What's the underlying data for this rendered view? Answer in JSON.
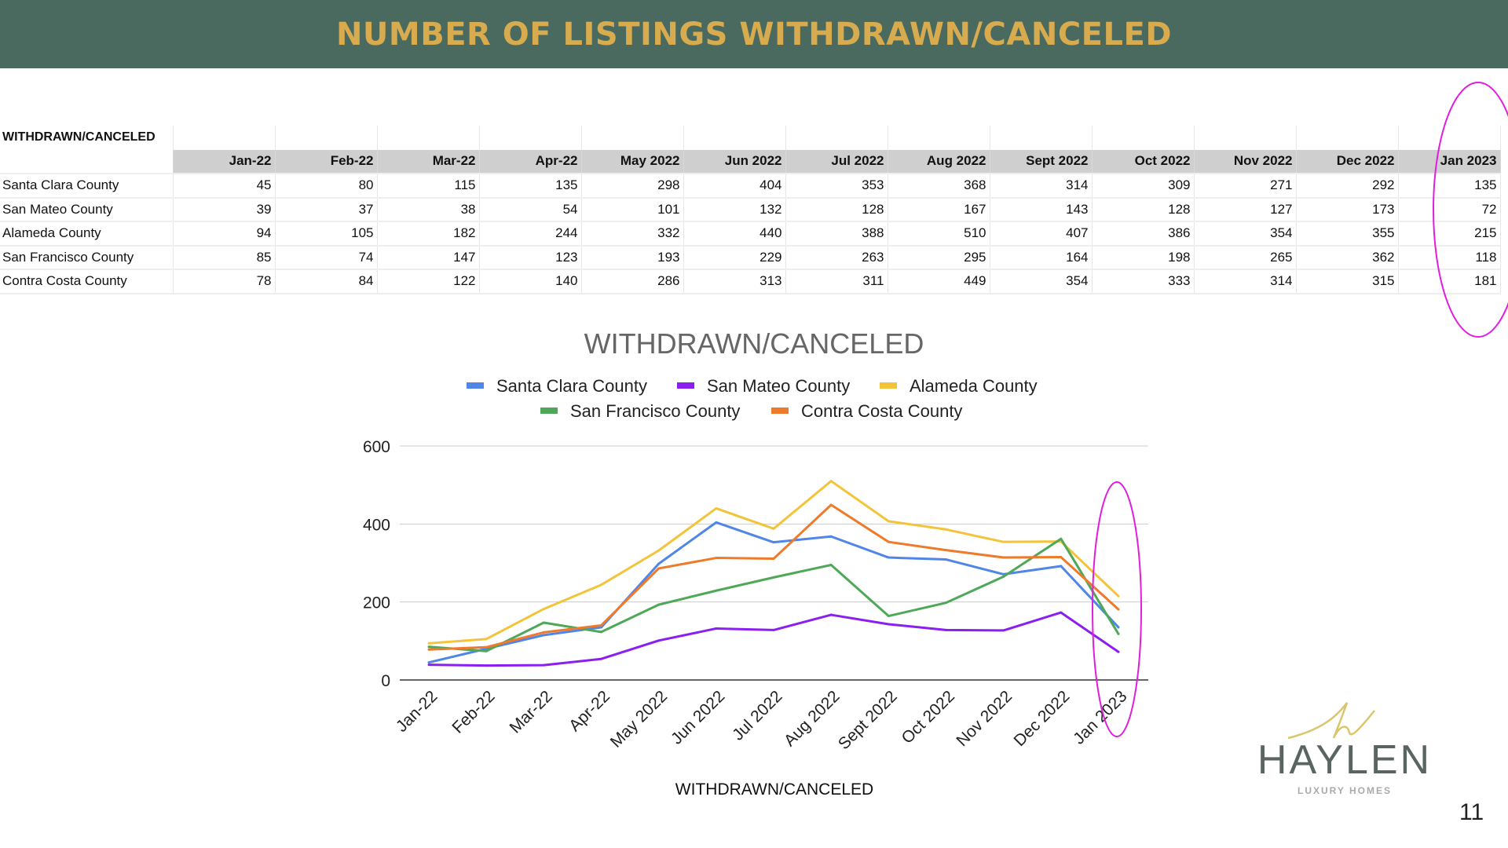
{
  "header": {
    "title": "NUMBER OF LISTINGS WITHDRAWN/CANCELED"
  },
  "table": {
    "title": "WITHDRAWN/CANCELED",
    "columns": [
      "Jan-22",
      "Feb-22",
      "Mar-22",
      "Apr-22",
      "May 2022",
      "Jun 2022",
      "Jul 2022",
      "Aug 2022",
      "Sept 2022",
      "Oct 2022",
      "Nov 2022",
      "Dec 2022",
      "Jan 2023"
    ],
    "rows": [
      {
        "label": "Santa Clara County",
        "values": [
          45,
          80,
          115,
          135,
          298,
          404,
          353,
          368,
          314,
          309,
          271,
          292,
          135
        ]
      },
      {
        "label": "San Mateo County",
        "values": [
          39,
          37,
          38,
          54,
          101,
          132,
          128,
          167,
          143,
          128,
          127,
          173,
          72
        ]
      },
      {
        "label": "Alameda County",
        "values": [
          94,
          105,
          182,
          244,
          332,
          440,
          388,
          510,
          407,
          386,
          354,
          355,
          215
        ]
      },
      {
        "label": "San Francisco County",
        "values": [
          85,
          74,
          147,
          123,
          193,
          229,
          263,
          295,
          164,
          198,
          265,
          362,
          118
        ]
      },
      {
        "label": "Contra Costa County",
        "values": [
          78,
          84,
          122,
          140,
          286,
          313,
          311,
          449,
          354,
          333,
          314,
          315,
          181
        ]
      }
    ]
  },
  "chart_data": {
    "type": "line",
    "title": "WITHDRAWN/CANCELED",
    "xlabel": "WITHDRAWN/CANCELED",
    "ylabel": "",
    "ylim": [
      0,
      600
    ],
    "yticks": [
      0,
      200,
      400,
      600
    ],
    "grid": true,
    "legend": "top",
    "categories": [
      "Jan-22",
      "Feb-22",
      "Mar-22",
      "Apr-22",
      "May 2022",
      "Jun 2022",
      "Jul 2022",
      "Aug 2022",
      "Sept 2022",
      "Oct 2022",
      "Nov 2022",
      "Dec 2022",
      "Jan 2023"
    ],
    "series": [
      {
        "name": "Santa Clara County",
        "color": "#4f86e8",
        "values": [
          45,
          80,
          115,
          135,
          298,
          404,
          353,
          368,
          314,
          309,
          271,
          292,
          135
        ]
      },
      {
        "name": "San Mateo County",
        "color": "#8a1ff0",
        "values": [
          39,
          37,
          38,
          54,
          101,
          132,
          128,
          167,
          143,
          128,
          127,
          173,
          72
        ]
      },
      {
        "name": "Alameda County",
        "color": "#f3c43a",
        "values": [
          94,
          105,
          182,
          244,
          332,
          440,
          388,
          510,
          407,
          386,
          354,
          355,
          215
        ]
      },
      {
        "name": "San Francisco County",
        "color": "#4fa858",
        "values": [
          85,
          74,
          147,
          123,
          193,
          229,
          263,
          295,
          164,
          198,
          265,
          362,
          118
        ]
      },
      {
        "name": "Contra Costa County",
        "color": "#ee7a2c",
        "values": [
          78,
          84,
          122,
          140,
          286,
          313,
          311,
          449,
          354,
          333,
          314,
          315,
          181
        ]
      }
    ]
  },
  "logo": {
    "name": "HAYLEN",
    "tagline": "LUXURY HOMES"
  },
  "page_number": "11",
  "colors": {
    "header_bg": "#4a6a5f",
    "header_text": "#d8ab4e",
    "highlight": "#e01ee0"
  }
}
